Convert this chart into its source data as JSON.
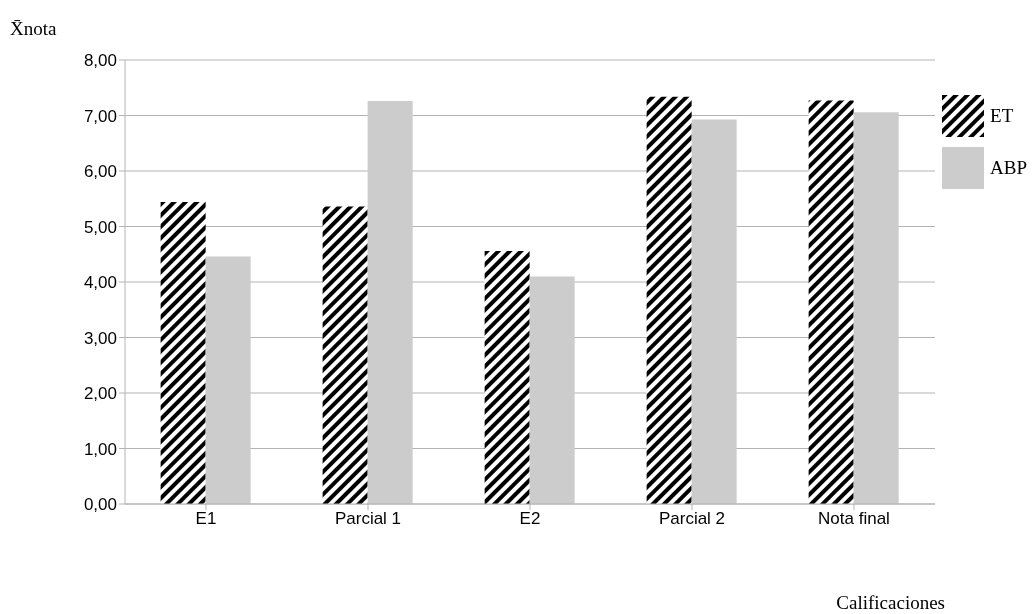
{
  "chart_data": {
    "type": "bar",
    "ylabel": "X̄nota",
    "xlabel": "Calificaciones",
    "categories": [
      "E1",
      "Parcial 1",
      "E2",
      "Parcial 2",
      "Nota final"
    ],
    "series": [
      {
        "name": "ET",
        "color": "#000000",
        "values": [
          5.44,
          5.36,
          4.56,
          7.34,
          7.27
        ]
      },
      {
        "name": "ABP",
        "color": "#cccccc",
        "values": [
          4.46,
          7.26,
          4.1,
          6.93,
          7.06
        ]
      }
    ],
    "ylim": [
      0,
      8
    ],
    "yticks": [
      {
        "value": 0,
        "label": "0,00"
      },
      {
        "value": 1,
        "label": "1,00"
      },
      {
        "value": 2,
        "label": "2,00"
      },
      {
        "value": 3,
        "label": "3,00"
      },
      {
        "value": 4,
        "label": "4,00"
      },
      {
        "value": 5,
        "label": "5,00"
      },
      {
        "value": 6,
        "label": "6,00"
      },
      {
        "value": 7,
        "label": "7,00"
      },
      {
        "value": 8,
        "label": "8,00"
      }
    ],
    "grid": "y",
    "legend": "right"
  }
}
